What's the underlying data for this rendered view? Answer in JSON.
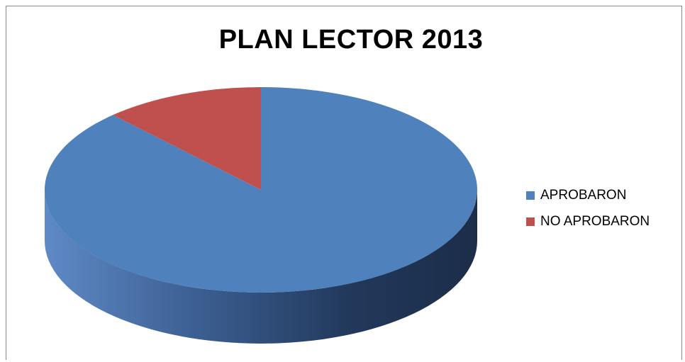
{
  "chart_data": {
    "type": "pie",
    "title": "PLAN LECTOR 2013",
    "categories": [
      "APROBARON",
      "NO APROBARON"
    ],
    "values": [
      88,
      12
    ],
    "colors": [
      "#4f81bd",
      "#c0504d"
    ],
    "legend_position": "right",
    "style": "3d"
  }
}
